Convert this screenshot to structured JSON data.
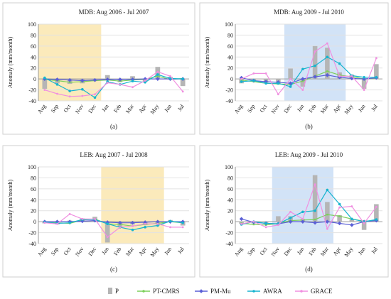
{
  "legend": [
    {
      "key": "P",
      "kind": "bar",
      "color": "#b5b5b5"
    },
    {
      "key": "PT-CMRS",
      "kind": "line",
      "color": "#7ccf5a"
    },
    {
      "key": "PM-Mu",
      "kind": "line",
      "color": "#5a5fd6"
    },
    {
      "key": "AWRA",
      "kind": "line",
      "color": "#16b4cf"
    },
    {
      "key": "GRACE",
      "kind": "line",
      "color": "#f08fe0"
    }
  ],
  "chart_data": [
    {
      "type": "bar+line",
      "title": "MDB: Aug 2006 - Jul 2007",
      "caption": "(a)",
      "ylabel": "Anomaly (mm/month)",
      "ylim": [
        -40,
        100
      ],
      "yticks": [
        -40,
        -20,
        0,
        20,
        40,
        60,
        80,
        100
      ],
      "categories": [
        "Aug",
        "Sep",
        "Oct",
        "Nov",
        "Dec",
        "Jan",
        "Feb",
        "Mar",
        "Apr",
        "May",
        "Jun",
        "Jul"
      ],
      "shade": {
        "from": 0,
        "to": 4,
        "color": "#fbeabb"
      },
      "bars": [
        -18,
        -8,
        -9,
        -8,
        -4,
        7,
        -6,
        5,
        -5,
        22,
        4,
        -13
      ],
      "series": [
        {
          "name": "PT-CMRS",
          "values": [
            -1,
            -3,
            -6,
            -5,
            -3,
            -2,
            -4,
            -2,
            -1,
            5,
            -1,
            1
          ]
        },
        {
          "name": "PM-Mu",
          "values": [
            0,
            -1,
            -2,
            -3,
            -2,
            -1,
            -1,
            -1,
            0,
            0,
            0,
            0
          ]
        },
        {
          "name": "AWRA",
          "values": [
            2,
            -10,
            -22,
            -19,
            -34,
            -5,
            -10,
            -4,
            -6,
            8,
            1,
            0
          ]
        },
        {
          "name": "GRACE",
          "values": [
            -20,
            -27,
            -32,
            -31,
            -28,
            -7,
            -10,
            -15,
            -3,
            13,
            5,
            -23
          ]
        }
      ]
    },
    {
      "type": "bar+line",
      "title": "MDB: Aug 2009 - Jul 2010",
      "caption": "(b)",
      "ylabel": "Anomaly (mm/month)",
      "ylim": [
        -40,
        100
      ],
      "yticks": [
        -40,
        -20,
        0,
        20,
        40,
        60,
        80,
        100
      ],
      "categories": [
        "Aug",
        "Sep",
        "Oct",
        "Nov",
        "Dec",
        "Jan",
        "Feb",
        "Mar",
        "Apr",
        "May",
        "Jun",
        "Jul"
      ],
      "shade": {
        "from": 4,
        "to": 8,
        "color": "#d2e3f7"
      },
      "bars": [
        -8,
        -5,
        -7,
        -10,
        19,
        -14,
        60,
        57,
        12,
        8,
        -18,
        27
      ],
      "series": [
        {
          "name": "PT-CMRS",
          "values": [
            -2,
            -5,
            -8,
            -9,
            -10,
            -4,
            5,
            14,
            7,
            4,
            0,
            1
          ]
        },
        {
          "name": "PM-Mu",
          "values": [
            2,
            -3,
            -5,
            -6,
            -8,
            0,
            4,
            7,
            3,
            1,
            0,
            2
          ]
        },
        {
          "name": "AWRA",
          "values": [
            -5,
            -3,
            -8,
            -8,
            -14,
            18,
            24,
            40,
            28,
            6,
            3,
            3
          ]
        },
        {
          "name": "GRACE",
          "values": [
            0,
            10,
            10,
            -28,
            0,
            -20,
            50,
            65,
            5,
            5,
            -20,
            38
          ]
        }
      ]
    },
    {
      "type": "bar+line",
      "title": "LEB: Aug 2007 - Jul 2008",
      "caption": "(c)",
      "ylabel": "Anomaly (mm/month)",
      "ylim": [
        -40,
        100
      ],
      "yticks": [
        -40,
        -20,
        0,
        20,
        40,
        60,
        80,
        100
      ],
      "categories": [
        "Aug",
        "Sep",
        "Oct",
        "Nov",
        "Dec",
        "Jan",
        "Feb",
        "Mar",
        "Apr",
        "May",
        "Jun",
        "Jul"
      ],
      "shade": {
        "from": 5,
        "to": 9,
        "color": "#fbeabb"
      },
      "bars": [
        -3,
        -5,
        2,
        6,
        9,
        -38,
        -10,
        -5,
        -6,
        -3,
        3,
        -7
      ],
      "series": [
        {
          "name": "PT-CMRS",
          "values": [
            0,
            -2,
            -3,
            3,
            5,
            -4,
            -5,
            -8,
            -5,
            -3,
            0,
            -2
          ]
        },
        {
          "name": "PM-Mu",
          "values": [
            0,
            0,
            0,
            1,
            2,
            -1,
            -2,
            -2,
            -1,
            0,
            0,
            0
          ]
        },
        {
          "name": "AWRA",
          "values": [
            -1,
            -3,
            -2,
            4,
            4,
            -4,
            -10,
            -15,
            -10,
            -7,
            1,
            -2
          ]
        },
        {
          "name": "GRACE",
          "values": [
            -2,
            -4,
            14,
            5,
            5,
            -28,
            -10,
            -8,
            -4,
            -4,
            -10,
            -10
          ]
        }
      ]
    },
    {
      "type": "bar+line",
      "title": "LEB: Aug 2009 - Jul 2010",
      "caption": "(d)",
      "ylabel": "Anomaly (mm/month)",
      "ylim": [
        -40,
        100
      ],
      "yticks": [
        -40,
        -20,
        0,
        20,
        40,
        60,
        80,
        100
      ],
      "categories": [
        "Aug",
        "Sep",
        "Oct",
        "Nov",
        "Dec",
        "Jan",
        "Feb",
        "Mar",
        "Apr",
        "May",
        "Jun",
        "Jul"
      ],
      "shade": {
        "from": 3,
        "to": 7,
        "color": "#d2e3f7"
      },
      "bars": [
        -4,
        -3,
        -4,
        10,
        10,
        5,
        85,
        36,
        12,
        4,
        -15,
        32
      ],
      "series": [
        {
          "name": "PT-CMRS",
          "values": [
            -3,
            -5,
            -6,
            -3,
            2,
            3,
            4,
            13,
            10,
            5,
            1,
            2
          ]
        },
        {
          "name": "PM-Mu",
          "values": [
            5,
            -1,
            -3,
            -4,
            0,
            0,
            -2,
            0,
            -3,
            -6,
            0,
            2
          ]
        },
        {
          "name": "AWRA",
          "values": [
            -5,
            0,
            -3,
            -4,
            7,
            18,
            20,
            58,
            32,
            5,
            0,
            4
          ]
        },
        {
          "name": "GRACE",
          "values": [
            -4,
            0,
            -10,
            -6,
            18,
            5,
            68,
            -13,
            26,
            28,
            -3,
            27
          ]
        }
      ]
    }
  ]
}
